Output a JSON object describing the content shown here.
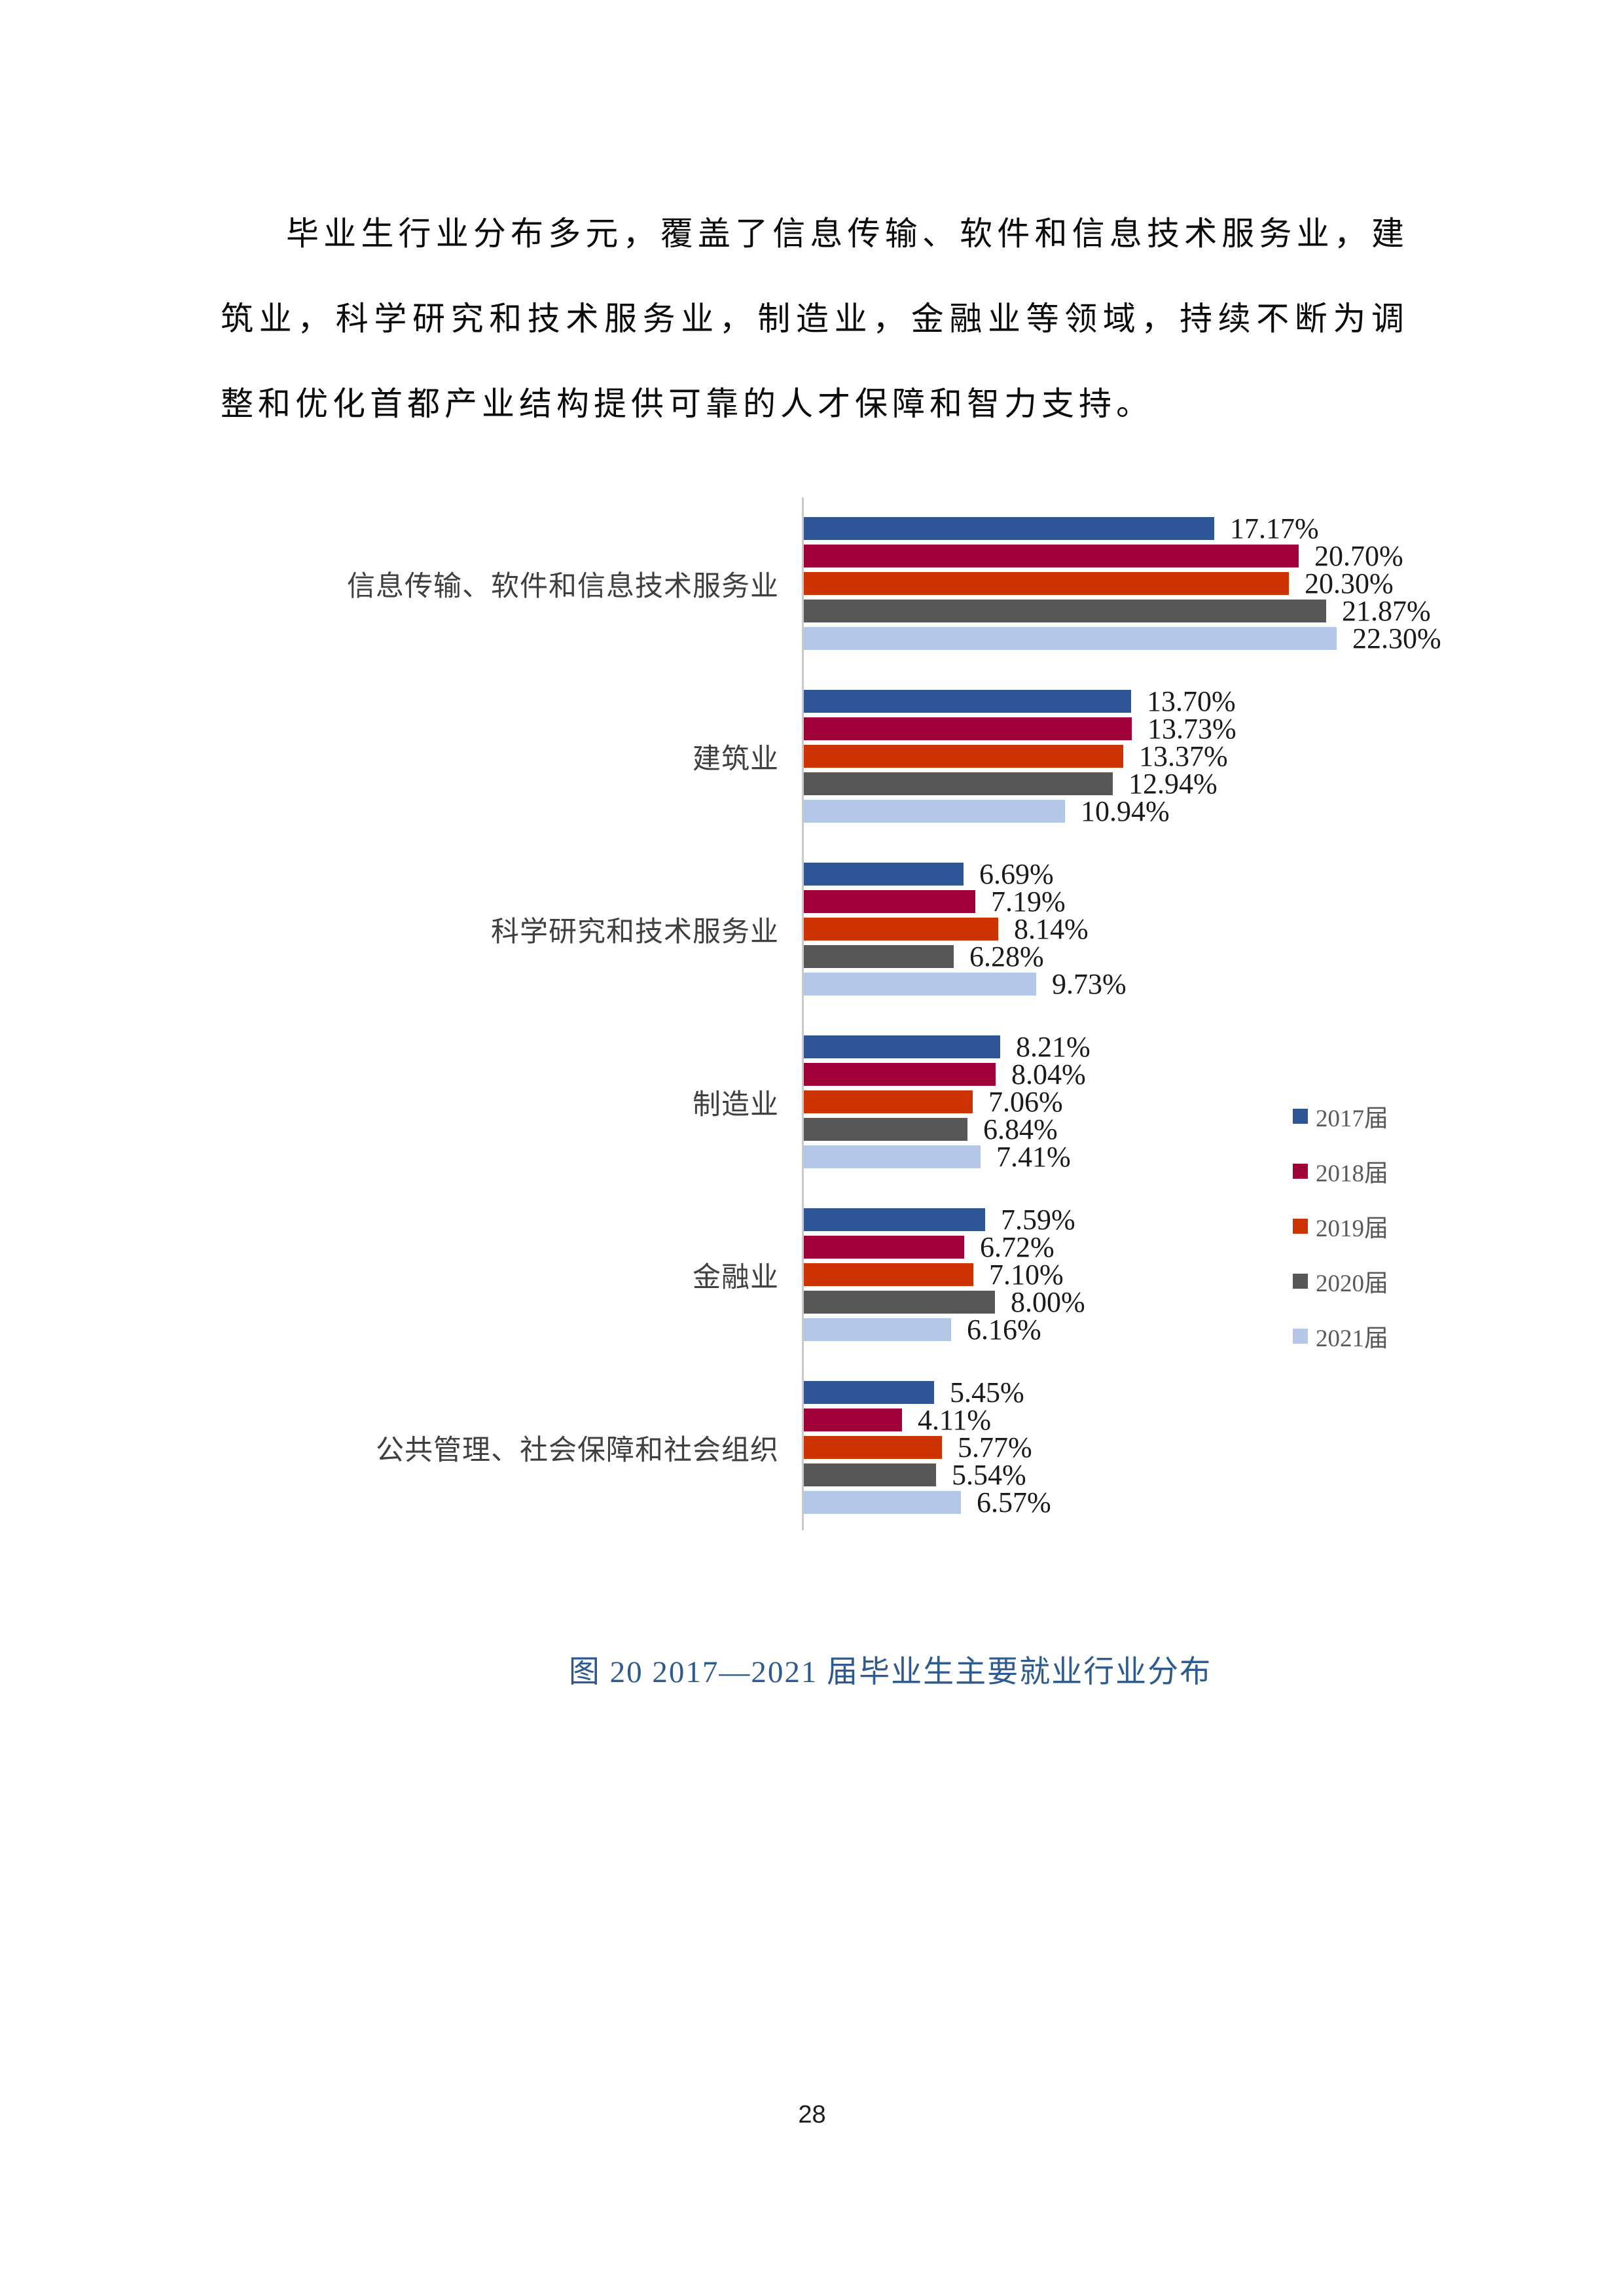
{
  "page": {
    "paragraph": "毕业生行业分布多元，覆盖了信息传输、软件和信息技术服务业，建筑业，科学研究和技术服务业，制造业，金融业等领域，持续不断为调整和优化首都产业结构提供可靠的人才保障和智力支持。",
    "caption": "图 20  2017—2021 届毕业生主要就业行业分布",
    "page_number": "28"
  },
  "chart_data": {
    "type": "bar",
    "orientation": "horizontal",
    "title": "",
    "xlabel": "",
    "ylabel": "",
    "grid": false,
    "legend_position": "right",
    "axis_color": "#c9c9c9",
    "value_labels": true,
    "xlim": [
      0,
      27.5
    ],
    "categories": [
      "信息传输、软件和信息技术服务业",
      "建筑业",
      "科学研究和技术服务业",
      "制造业",
      "金融业",
      "公共管理、社会保障和社会组织"
    ],
    "series": [
      {
        "name": "2017届",
        "color": "#2f5597",
        "values": [
          17.17,
          13.7,
          6.69,
          8.21,
          7.59,
          5.45
        ],
        "labels": [
          "17.17%",
          "13.70%",
          "6.69%",
          "8.21%",
          "7.59%",
          "5.45%"
        ]
      },
      {
        "name": "2018届",
        "color": "#a00038",
        "values": [
          20.7,
          13.73,
          7.19,
          8.04,
          6.72,
          4.11
        ],
        "labels": [
          "20.70%",
          "13.73%",
          "7.19%",
          "8.04%",
          "6.72%",
          "4.11%"
        ]
      },
      {
        "name": "2019届",
        "color": "#cc3300",
        "values": [
          20.3,
          13.37,
          8.14,
          7.06,
          7.1,
          5.77
        ],
        "labels": [
          "20.30%",
          "13.37%",
          "8.14%",
          "7.06%",
          "7.10%",
          "5.77%"
        ]
      },
      {
        "name": "2020届",
        "color": "#575757",
        "values": [
          21.87,
          12.94,
          6.28,
          6.84,
          8.0,
          5.54
        ],
        "labels": [
          "21.87%",
          "12.94%",
          "6.28%",
          "6.84%",
          "8.00%",
          "5.54%"
        ]
      },
      {
        "name": "2021届",
        "color": "#b4c7e7",
        "values": [
          22.3,
          10.94,
          9.73,
          7.41,
          6.16,
          6.57
        ],
        "labels": [
          "22.30%",
          "10.94%",
          "9.73%",
          "7.41%",
          "6.16%",
          "6.57%"
        ]
      }
    ]
  }
}
